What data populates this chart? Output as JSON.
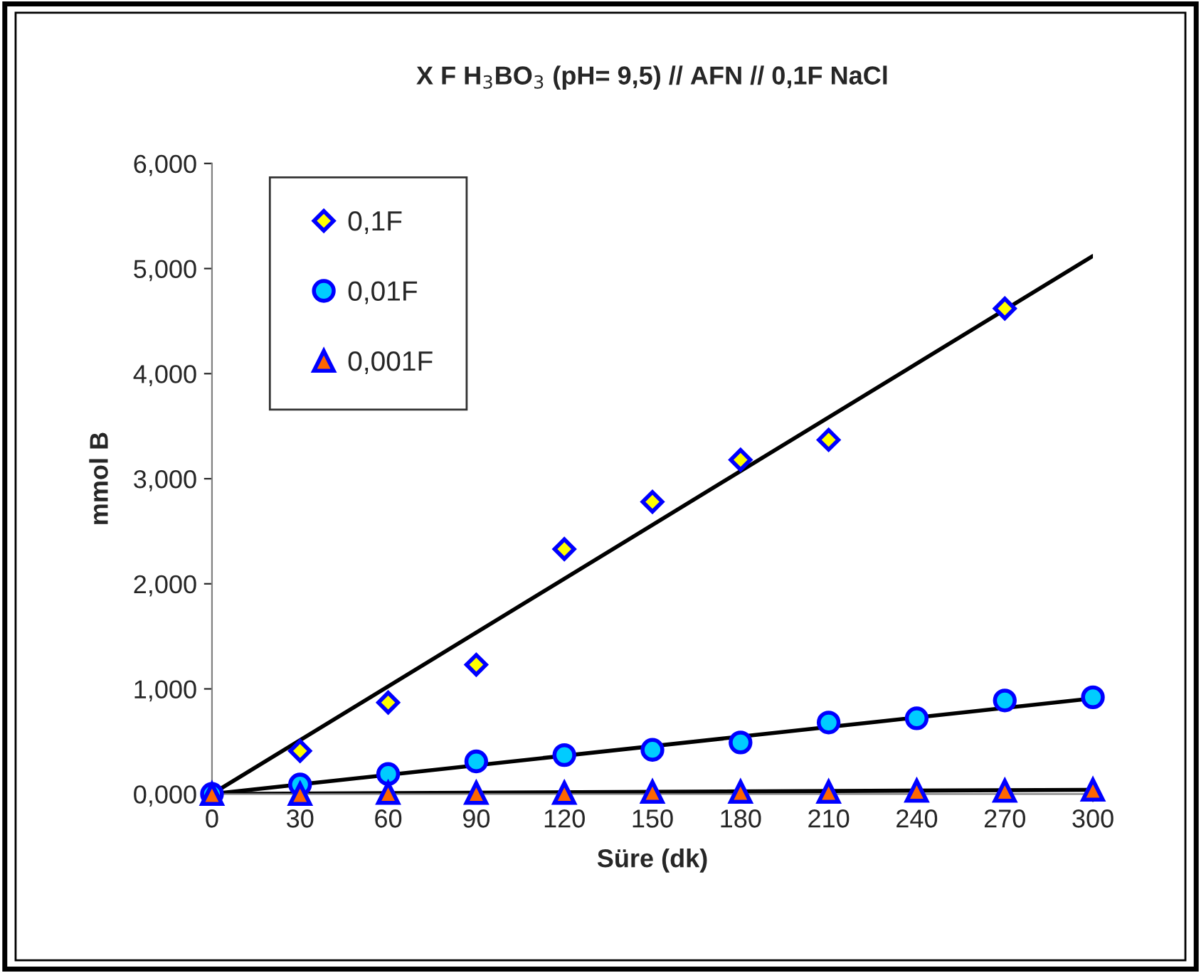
{
  "chart_data": {
    "type": "scatter",
    "title": "X F H$_{3}$BO$_{3}$ (pH= 9,5) // AFN // 0,1F NaCl",
    "xlabel": "Süre (dk)",
    "ylabel": "mmol B",
    "x": [
      0,
      30,
      60,
      90,
      120,
      150,
      180,
      210,
      240,
      270,
      300
    ],
    "series": [
      {
        "name": "0,1F",
        "color": "#ffff00",
        "marker": "diamond",
        "x": [
          30,
          60,
          90,
          120,
          150,
          180,
          210,
          270
        ],
        "values": [
          0.41,
          0.87,
          1.23,
          2.33,
          2.78,
          3.18,
          3.37,
          4.62
        ]
      },
      {
        "name": "0,01F",
        "color": "#00ccff",
        "marker": "circle",
        "values": [
          0,
          0.09,
          0.19,
          0.31,
          0.37,
          0.42,
          0.49,
          0.68,
          0.72,
          0.89,
          0.92
        ]
      },
      {
        "name": "0,001F",
        "color": "#ff6600",
        "marker": "triangle",
        "values": [
          0,
          0,
          0.01,
          0.01,
          0.01,
          0.02,
          0.02,
          0.02,
          0.03,
          0.03,
          0.04
        ]
      },
      {
        "type": "line",
        "color": "#000000",
        "x": [
          0,
          300
        ],
        "values": [
          0,
          5.12
        ]
      },
      {
        "type": "line",
        "color": "#000000",
        "x": [
          0,
          300
        ],
        "values": [
          0,
          0.91
        ]
      },
      {
        "type": "line",
        "color": "#000000",
        "x": [
          0,
          300
        ],
        "values": [
          0,
          0.04
        ]
      }
    ],
    "xlim": [
      0,
      300
    ],
    "xticks": [
      0,
      30,
      60,
      90,
      120,
      150,
      180,
      210,
      240,
      270,
      300
    ],
    "ylim": [
      0,
      6
    ],
    "yticks": [
      {
        "value": 0,
        "label": "0,000"
      },
      {
        "value": 1,
        "label": "1,000"
      },
      {
        "value": 2,
        "label": "2,000"
      },
      {
        "value": 3,
        "label": "3,000"
      },
      {
        "value": 4,
        "label": "4,000"
      },
      {
        "value": 5,
        "label": "5,000"
      },
      {
        "value": 6,
        "label": "6,000"
      }
    ],
    "grid": false,
    "legend": "top left"
  }
}
